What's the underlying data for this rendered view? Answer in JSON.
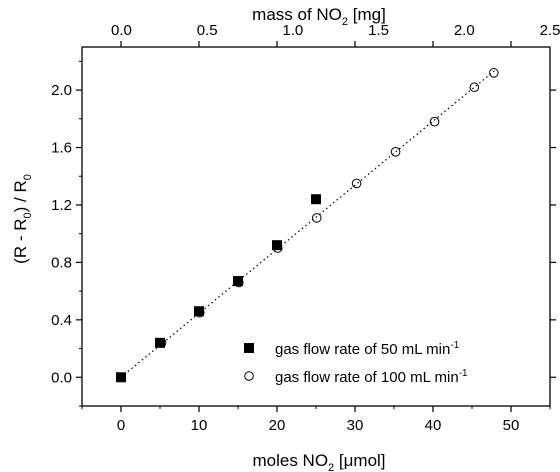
{
  "chart_data": {
    "type": "scatter",
    "xlabel": {
      "main": "moles NO",
      "sub": "2",
      "unit": " [μmol]"
    },
    "x2label": {
      "main": "mass of NO",
      "sub": "2",
      "unit": " [mg]"
    },
    "ylabel": {
      "a": "(R - R",
      "a_sub": "0",
      "b": ") / R",
      "b_sub": "0"
    },
    "xlim": [
      -5,
      55
    ],
    "ylim": [
      -0.2,
      2.3
    ],
    "x2lim": [
      -0.23,
      2.5
    ],
    "x_ticks": [
      0,
      10,
      20,
      30,
      40,
      50
    ],
    "x_tick_labels": [
      "0",
      "10",
      "20",
      "30",
      "40",
      "50"
    ],
    "y_ticks": [
      0.0,
      0.4,
      0.8,
      1.2,
      1.6,
      2.0
    ],
    "y_tick_labels": [
      "0.0",
      "0.4",
      "0.8",
      "1.2",
      "1.6",
      "2.0"
    ],
    "x2_ticks": [
      0.0,
      0.5,
      1.0,
      1.5,
      2.0,
      2.5
    ],
    "x2_tick_labels": [
      "0.0",
      "0.5",
      "1.0",
      "1.5",
      "2.0",
      "2.5"
    ],
    "series": [
      {
        "name": "gas flow rate of  50 mL min",
        "name_sup": "-1",
        "marker": "filled-square",
        "color": "#000000",
        "x": [
          0,
          5,
          10,
          15,
          20,
          25
        ],
        "y": [
          0.0,
          0.24,
          0.46,
          0.67,
          0.92,
          1.24
        ]
      },
      {
        "name": "gas flow rate of  100 mL min",
        "name_sup": "-1",
        "marker": "open-circle",
        "color": "#000000",
        "x": [
          0,
          5.2,
          10.1,
          15.1,
          20.1,
          25.1,
          30.2,
          35.2,
          40.2,
          45.3,
          47.8
        ],
        "y": [
          0.0,
          0.24,
          0.45,
          0.66,
          0.9,
          1.11,
          1.35,
          1.57,
          1.78,
          2.02,
          2.12
        ]
      }
    ],
    "fit_line": {
      "style": "dotted",
      "x": [
        0,
        48
      ],
      "y": [
        0.0,
        2.14
      ]
    },
    "legend_position": "bottom-right",
    "grid": false
  }
}
